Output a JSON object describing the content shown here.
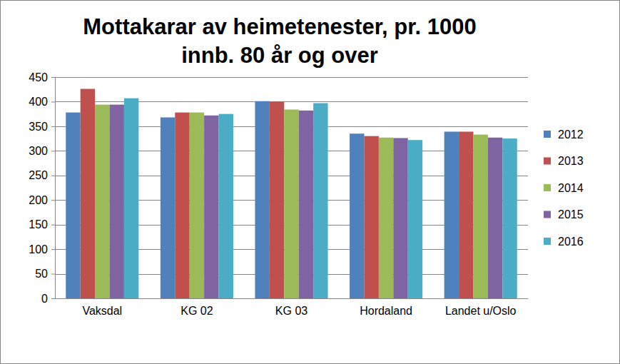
{
  "chart_data": {
    "type": "bar",
    "title": "Mottakarar av heimetenester, pr. 1000 innb. 80 år og over",
    "categories": [
      "Vaksdal",
      "KG 02",
      "KG 03",
      "Hordaland",
      "Landet u/Oslo"
    ],
    "series": [
      {
        "name": "2012",
        "color": "#4f81bd",
        "values": [
          378,
          368,
          401,
          335,
          339
        ]
      },
      {
        "name": "2013",
        "color": "#c0504d",
        "values": [
          426,
          378,
          400,
          330,
          339
        ]
      },
      {
        "name": "2014",
        "color": "#9bbb59",
        "values": [
          394,
          378,
          384,
          327,
          333
        ]
      },
      {
        "name": "2015",
        "color": "#8064a2",
        "values": [
          394,
          372,
          382,
          326,
          327
        ]
      },
      {
        "name": "2016",
        "color": "#4bacc6",
        "values": [
          407,
          375,
          397,
          322,
          325
        ]
      }
    ],
    "ylim": [
      0,
      450
    ],
    "yticks": [
      0,
      50,
      100,
      150,
      200,
      250,
      300,
      350,
      400,
      450
    ],
    "grid": true,
    "legend": "right"
  }
}
